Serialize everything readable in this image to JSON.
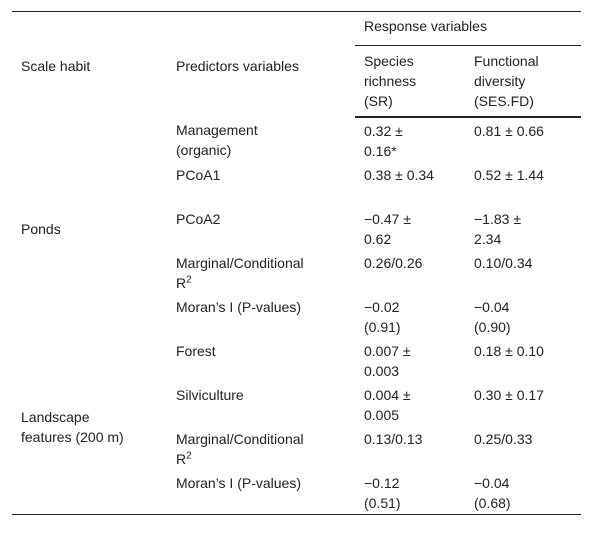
{
  "table": {
    "header": {
      "scale_habit": "Scale habit",
      "predictors": "Predictors variables",
      "response": "Response variables",
      "columns": [
        "Species richness (SR)",
        "Functional diversity (SES.FD)"
      ]
    },
    "groups": [
      {
        "scale": "Ponds",
        "rows": [
          {
            "predictor": "Management (organic)",
            "sr": "0.32 ± 0.16*",
            "fd": "0.81 ± 0.66"
          },
          {
            "predictor": "PCoA1",
            "sr": "0.38 ± 0.34",
            "fd": "0.52 ± 1.44"
          },
          {
            "predictor": "PCoA2",
            "sr": "−0.47 ± 0.62",
            "fd": "−1.83 ± 2.34"
          },
          {
            "predictor": "Marginal/Conditional R",
            "predictor_sup": "2",
            "sr": "0.26/0.26",
            "fd": "0.10/0.34"
          },
          {
            "predictor": "Moran’s I (P-values)",
            "sr": "−0.02 (0.91)",
            "fd": "−0.04 (0.90)"
          }
        ]
      },
      {
        "scale": "Landscape features (200 m)",
        "rows": [
          {
            "predictor": "Forest",
            "sr": "0.007 ± 0.003",
            "fd": "0.18 ± 0.10"
          },
          {
            "predictor": "Silviculture",
            "sr": "0.004 ± 0.005",
            "fd": "0.30 ± 0.17"
          },
          {
            "predictor": "Marginal/Conditional R",
            "predictor_sup": "2",
            "sr": "0.13/0.13",
            "fd": "0.25/0.33"
          },
          {
            "predictor": "Moran’s I (P-values)",
            "sr": "−0.12 (0.51)",
            "fd": "−0.04 (0.68)"
          }
        ]
      }
    ]
  }
}
